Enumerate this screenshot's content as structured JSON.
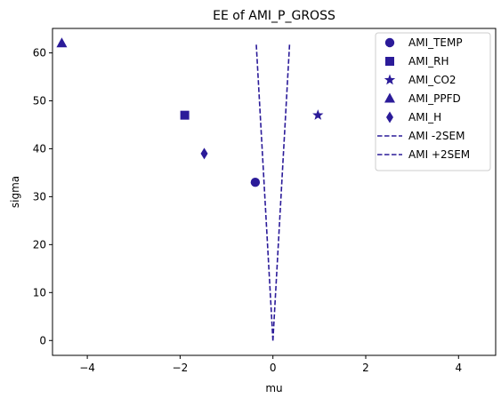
{
  "chart_data": {
    "type": "scatter",
    "title": "EE of AMI_P_GROSS",
    "xlabel": "mu",
    "ylabel": "sigma",
    "xlim": [
      -4.75,
      4.8
    ],
    "ylim": [
      -3.1,
      65.1
    ],
    "xticks": [
      -4,
      -2,
      0,
      2,
      4
    ],
    "yticks": [
      0,
      10,
      20,
      30,
      40,
      50,
      60
    ],
    "grid": false,
    "legend_position": "upper right",
    "color": "#2b1b99",
    "points": [
      {
        "name": "AMI_TEMP",
        "marker": "circle",
        "x": -0.38,
        "y": 33
      },
      {
        "name": "AMI_RH",
        "marker": "square",
        "x": -1.9,
        "y": 47
      },
      {
        "name": "AMI_CO2",
        "marker": "star",
        "x": 0.97,
        "y": 47
      },
      {
        "name": "AMI_PPFD",
        "marker": "triangle",
        "x": -4.55,
        "y": 62
      },
      {
        "name": "AMI_H",
        "marker": "diamond",
        "x": -1.48,
        "y": 39
      }
    ],
    "lines": [
      {
        "name": "AMI -2SEM",
        "style": "dashed",
        "x": [
          0,
          -0.36
        ],
        "y": [
          0,
          62
        ]
      },
      {
        "name": "AMI +2SEM",
        "style": "dashed",
        "x": [
          0,
          0.36
        ],
        "y": [
          0,
          62
        ]
      }
    ]
  }
}
